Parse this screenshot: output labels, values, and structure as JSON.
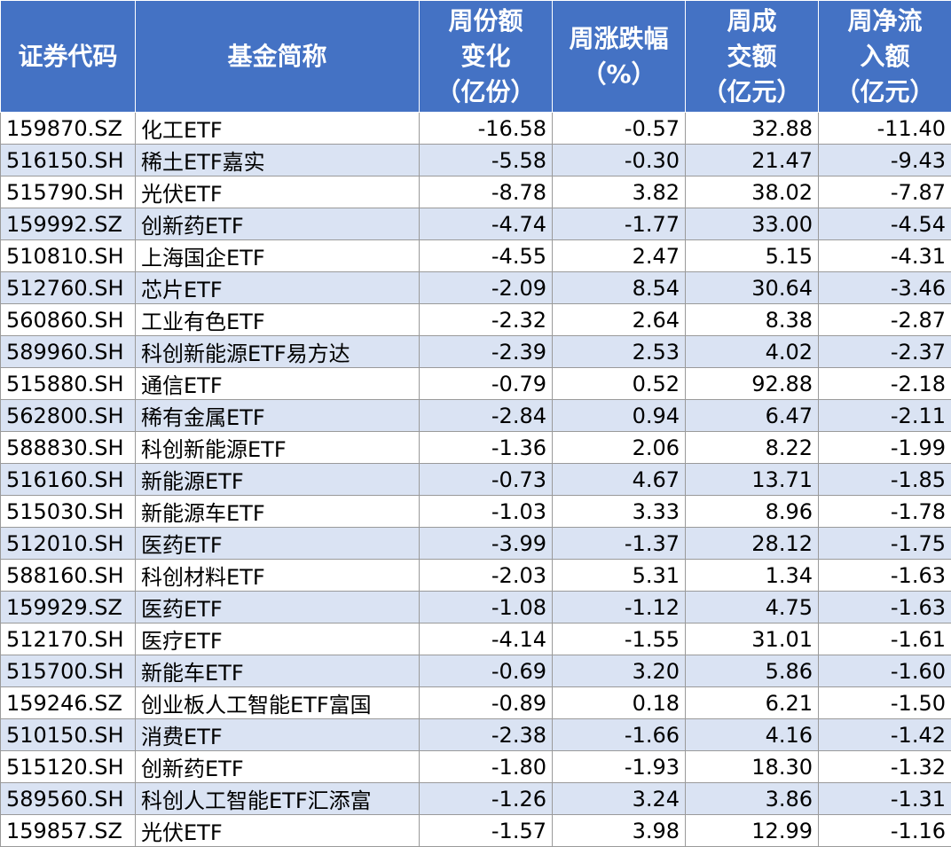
{
  "headers": [
    {
      "lines": [
        "证券代码"
      ]
    },
    {
      "lines": [
        "基金简称"
      ]
    },
    {
      "lines": [
        "周份额",
        "变化",
        "（亿份）"
      ]
    },
    {
      "lines": [
        "周涨跌幅",
        "（%）"
      ]
    },
    {
      "lines": [
        "周成",
        "交额",
        "（亿元）"
      ]
    },
    {
      "lines": [
        "周净流",
        "入额",
        "（亿元）"
      ]
    }
  ],
  "rows": [
    [
      "159870.SZ",
      "化工ETF",
      "-16.58",
      "-0.57",
      "32.88",
      "-11.40"
    ],
    [
      "516150.SH",
      "稀土ETF嘉实",
      "-5.58",
      "-0.30",
      "21.47",
      "-9.43"
    ],
    [
      "515790.SH",
      "光伏ETF",
      "-8.78",
      "3.82",
      "38.02",
      "-7.87"
    ],
    [
      "159992.SZ",
      "创新药ETF",
      "-4.74",
      "-1.77",
      "33.00",
      "-4.54"
    ],
    [
      "510810.SH",
      "上海国企ETF",
      "-4.55",
      "2.47",
      "5.15",
      "-4.31"
    ],
    [
      "512760.SH",
      "芯片ETF",
      "-2.09",
      "8.54",
      "30.64",
      "-3.46"
    ],
    [
      "560860.SH",
      "工业有色ETF",
      "-2.32",
      "2.64",
      "8.38",
      "-2.87"
    ],
    [
      "589960.SH",
      "科创新能源ETF易方达",
      "-2.39",
      "2.53",
      "4.02",
      "-2.37"
    ],
    [
      "515880.SH",
      "通信ETF",
      "-0.79",
      "0.52",
      "92.88",
      "-2.18"
    ],
    [
      "562800.SH",
      "稀有金属ETF",
      "-2.84",
      "0.94",
      "6.47",
      "-2.11"
    ],
    [
      "588830.SH",
      "科创新能源ETF",
      "-1.36",
      "2.06",
      "8.22",
      "-1.99"
    ],
    [
      "516160.SH",
      "新能源ETF",
      "-0.73",
      "4.67",
      "13.71",
      "-1.85"
    ],
    [
      "515030.SH",
      "新能源车ETF",
      "-1.03",
      "3.33",
      "8.96",
      "-1.78"
    ],
    [
      "512010.SH",
      "医药ETF",
      "-3.99",
      "-1.37",
      "28.12",
      "-1.75"
    ],
    [
      "588160.SH",
      "科创材料ETF",
      "-2.03",
      "5.31",
      "1.34",
      "-1.63"
    ],
    [
      "159929.SZ",
      "医药ETF",
      "-1.08",
      "-1.12",
      "4.75",
      "-1.63"
    ],
    [
      "512170.SH",
      "医疗ETF",
      "-4.14",
      "-1.55",
      "31.01",
      "-1.61"
    ],
    [
      "515700.SH",
      "新能车ETF",
      "-0.69",
      "3.20",
      "5.86",
      "-1.60"
    ],
    [
      "159246.SZ",
      "创业板人工智能ETF富国",
      "-0.89",
      "0.18",
      "6.21",
      "-1.50"
    ],
    [
      "510150.SH",
      "消费ETF",
      "-2.38",
      "-1.66",
      "4.16",
      "-1.42"
    ],
    [
      "515120.SH",
      "创新药ETF",
      "-1.80",
      "-1.93",
      "18.30",
      "-1.32"
    ],
    [
      "589560.SH",
      "科创人工智能ETF汇添富",
      "-1.26",
      "3.24",
      "3.86",
      "-1.31"
    ],
    [
      "159857.SZ",
      "光伏ETF",
      "-1.57",
      "3.98",
      "12.99",
      "-1.16"
    ]
  ],
  "colors": {
    "header_bg": "#4472c4",
    "header_text": "#ffffff",
    "row_alt_bg": "#dae3f3",
    "row_bg": "#ffffff"
  }
}
